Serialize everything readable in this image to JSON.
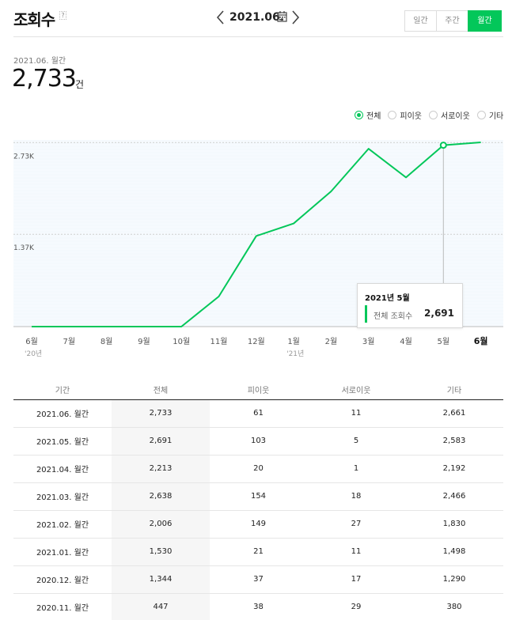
{
  "header": {
    "title": "조회수",
    "help": "?",
    "date": "2021.06.",
    "periods": [
      {
        "label": "일간",
        "active": false
      },
      {
        "label": "주간",
        "active": false
      },
      {
        "label": "월간",
        "active": true
      }
    ]
  },
  "summary": {
    "label": "2021.06. 월간",
    "value": "2,733",
    "unit": "건"
  },
  "legend": [
    {
      "label": "전체",
      "checked": true
    },
    {
      "label": "피이웃",
      "checked": false
    },
    {
      "label": "서로이웃",
      "checked": false
    },
    {
      "label": "기타",
      "checked": false
    }
  ],
  "colors": {
    "accent": "#03c75a",
    "plot_background": "#f4f9fd"
  },
  "tooltip": {
    "title": "2021년 5월",
    "key": "전체 조회수",
    "value": "2,691"
  },
  "chart_data": {
    "type": "line",
    "x": [
      "6월",
      "7월",
      "8월",
      "9월",
      "10월",
      "11월",
      "12월",
      "1월",
      "2월",
      "3월",
      "4월",
      "5월",
      "6월"
    ],
    "year_labels": [
      {
        "at": "6월",
        "text": "'20년"
      },
      {
        "at": "1월",
        "text": "'21년"
      }
    ],
    "selected_label": "6월",
    "series": [
      {
        "values": [
          0,
          0,
          0,
          0,
          0,
          447,
          1344,
          1530,
          2006,
          2638,
          2213,
          2691,
          2733
        ]
      }
    ],
    "yticks": [
      "2.73K",
      "1.37K"
    ],
    "ytick_values": [
      2730,
      1370
    ],
    "ylim": [
      0,
      2733
    ],
    "grid": true,
    "highlight_index": 11
  },
  "table": {
    "headers": [
      "기간",
      "전체",
      "피이웃",
      "서로이웃",
      "기타"
    ],
    "rows": [
      [
        "2021.06. 월간",
        "2,733",
        "61",
        "11",
        "2,661"
      ],
      [
        "2021.05. 월간",
        "2,691",
        "103",
        "5",
        "2,583"
      ],
      [
        "2021.04. 월간",
        "2,213",
        "20",
        "1",
        "2,192"
      ],
      [
        "2021.03. 월간",
        "2,638",
        "154",
        "18",
        "2,466"
      ],
      [
        "2021.02. 월간",
        "2,006",
        "149",
        "27",
        "1,830"
      ],
      [
        "2021.01. 월간",
        "1,530",
        "21",
        "11",
        "1,498"
      ],
      [
        "2020.12. 월간",
        "1,344",
        "37",
        "17",
        "1,290"
      ],
      [
        "2020.11. 월간",
        "447",
        "38",
        "29",
        "380"
      ]
    ]
  }
}
